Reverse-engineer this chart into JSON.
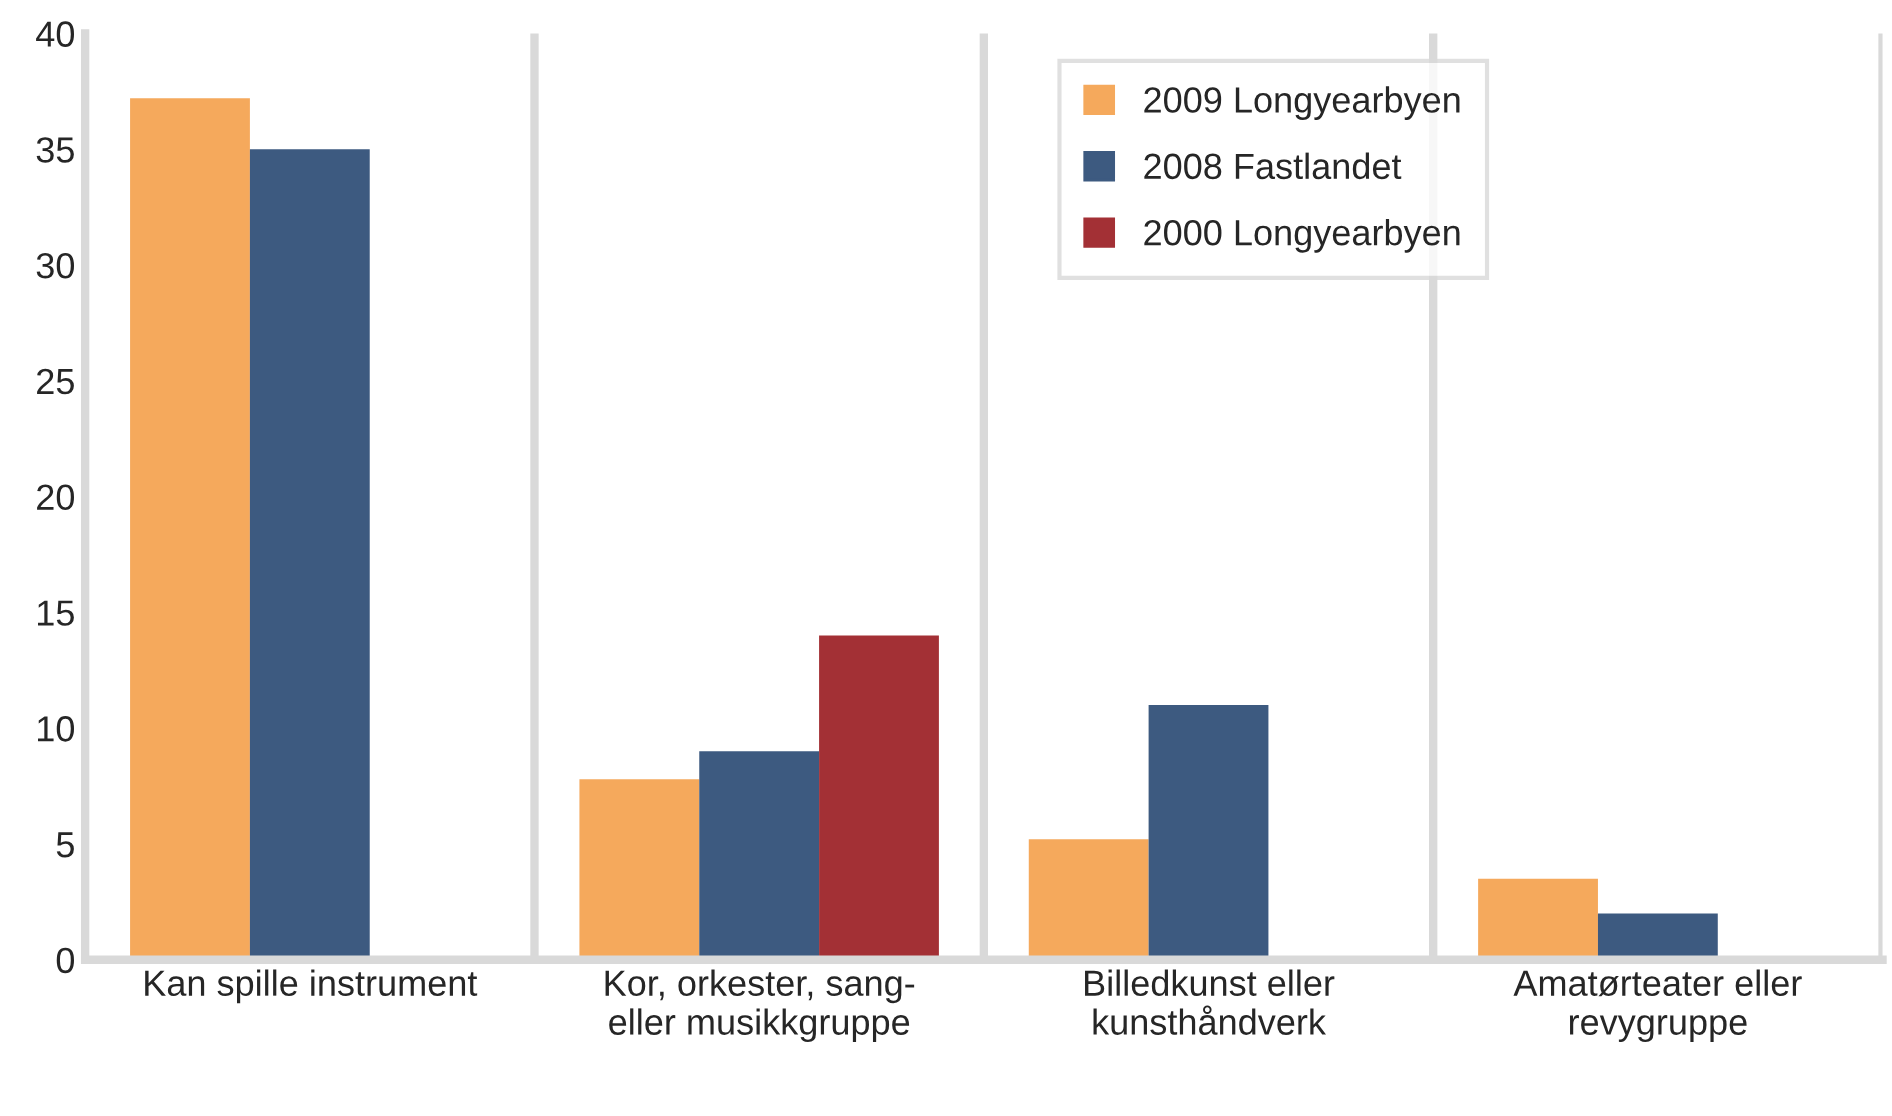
{
  "chart_data": {
    "type": "bar",
    "categories": [
      "Kan spille instrument",
      "Kor, orkester, sang-\neller musikkgruppe",
      "Billedkunst eller\nkunsthåndverk",
      "Amatørteater eller\nrevygruppe"
    ],
    "series": [
      {
        "name": "2009 Longyearbyen",
        "color": "#f5a95c",
        "values": [
          37.2,
          7.8,
          5.2,
          3.5
        ]
      },
      {
        "name": "2008 Fastlandet",
        "color": "#3d5a80",
        "values": [
          35,
          9,
          11,
          2
        ]
      },
      {
        "name": "2000 Longyearbyen",
        "color": "#a33035",
        "values": [
          null,
          14,
          null,
          null
        ]
      }
    ],
    "ylim": [
      0,
      40
    ],
    "yticks": [
      0,
      5,
      10,
      15,
      20,
      25,
      30,
      35,
      40
    ],
    "grid": "x",
    "legend": "top right"
  }
}
